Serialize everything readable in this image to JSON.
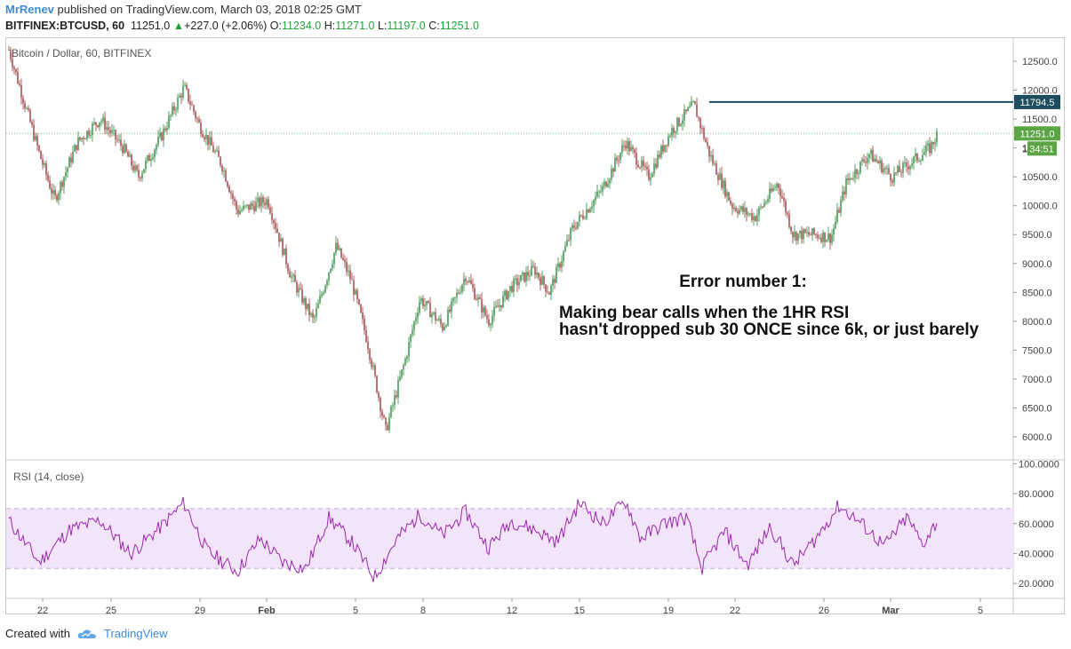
{
  "header": {
    "author": "MrRenev",
    "published_text": "published on TradingView.com, March 03, 2018 02:25 GMT",
    "symbol": "BITFINEX:BTCUSD, 60",
    "last": "11251.0",
    "change": "+227.0 (+2.06%)",
    "o_label": "O:",
    "o": "11234.0",
    "h_label": "H:",
    "h": "11271.0",
    "l_label": "L:",
    "l": "11197.0",
    "c_label": "C:",
    "c": "11251.0"
  },
  "footer": {
    "created_with": "Created with",
    "brand": "TradingView"
  },
  "chart_data": [
    {
      "type": "candlestick",
      "title": "Bitcoin / Dollar, 60, BITFINEX",
      "ylim": [
        5600,
        12900
      ],
      "yticks": [
        6000,
        6500,
        7000,
        7500,
        8000,
        8500,
        9000,
        9500,
        10000,
        10500,
        11000,
        11500,
        12000,
        12500
      ],
      "ytick_labels": [
        "6000.0",
        "6500.0",
        "7000.0",
        "7500.0",
        "8000.0",
        "8500.0",
        "9000.0",
        "9500.0",
        "10000.0",
        "10500.0",
        "11000.0",
        "11500.0",
        "12000.0",
        "12500.0"
      ],
      "x_tick_labels": [
        "22",
        "25",
        "29",
        "Feb",
        "5",
        "8",
        "12",
        "15",
        "19",
        "22",
        "26",
        "Mar",
        "5"
      ],
      "price_path": [
        {
          "x": 0,
          "y": 12700
        },
        {
          "x": 2,
          "y": 11800
        },
        {
          "x": 4,
          "y": 10900
        },
        {
          "x": 6,
          "y": 10100
        },
        {
          "x": 9,
          "y": 11100
        },
        {
          "x": 12,
          "y": 11500
        },
        {
          "x": 15,
          "y": 11000
        },
        {
          "x": 17,
          "y": 10500
        },
        {
          "x": 20,
          "y": 11200
        },
        {
          "x": 23,
          "y": 12050
        },
        {
          "x": 25,
          "y": 11400
        },
        {
          "x": 28,
          "y": 10700
        },
        {
          "x": 30,
          "y": 9900
        },
        {
          "x": 34,
          "y": 10100
        },
        {
          "x": 37,
          "y": 8800
        },
        {
          "x": 40,
          "y": 8000
        },
        {
          "x": 43,
          "y": 9300
        },
        {
          "x": 45,
          "y": 8700
        },
        {
          "x": 47,
          "y": 7700
        },
        {
          "x": 49.5,
          "y": 6100
        },
        {
          "x": 52,
          "y": 7300
        },
        {
          "x": 54,
          "y": 8400
        },
        {
          "x": 57,
          "y": 7900
        },
        {
          "x": 60,
          "y": 8800
        },
        {
          "x": 63,
          "y": 8000
        },
        {
          "x": 66,
          "y": 8600
        },
        {
          "x": 69,
          "y": 8900
        },
        {
          "x": 71,
          "y": 8500
        },
        {
          "x": 74,
          "y": 9600
        },
        {
          "x": 78,
          "y": 10300
        },
        {
          "x": 81,
          "y": 11100
        },
        {
          "x": 84,
          "y": 10500
        },
        {
          "x": 87,
          "y": 11300
        },
        {
          "x": 90,
          "y": 11750
        },
        {
          "x": 92,
          "y": 10900
        },
        {
          "x": 95,
          "y": 10000
        },
        {
          "x": 98,
          "y": 9800
        },
        {
          "x": 101,
          "y": 10400
        },
        {
          "x": 103,
          "y": 9500
        },
        {
          "x": 106,
          "y": 9500
        },
        {
          "x": 108,
          "y": 9450
        },
        {
          "x": 110,
          "y": 10400
        },
        {
          "x": 113,
          "y": 10900
        },
        {
          "x": 116,
          "y": 10500
        },
        {
          "x": 118,
          "y": 10700
        },
        {
          "x": 121,
          "y": 11000
        },
        {
          "x": 122,
          "y": 11250
        }
      ],
      "resistance_line": {
        "value": 11794.5,
        "label": "11794.5",
        "color": "#1e4d5e"
      },
      "last_price": {
        "value": 11251.0,
        "label": "11251.0",
        "countdown": "34:51",
        "countdown_prefix": "1",
        "color": "#5ba545"
      },
      "annotation": {
        "heading": "Error number 1:",
        "line1": "Making bear calls when the 1HR RSI",
        "line2": "hasn't dropped sub 30 ONCE since 6k, or just barely"
      },
      "colors": {
        "up": "#2e8b3d",
        "down": "#9b3a3a",
        "grid_dotted": "#7ab87a"
      }
    },
    {
      "type": "line",
      "title": "RSI (14, close)",
      "ylim": [
        10,
        102
      ],
      "yticks": [
        20,
        40,
        60,
        80,
        100
      ],
      "ytick_labels": [
        "20.0000",
        "40.0000",
        "60.0000",
        "80.0000",
        "100.0000"
      ],
      "band": [
        30,
        70
      ],
      "series": [
        {
          "values_path": [
            {
              "x": 0,
              "y": 62
            },
            {
              "x": 4,
              "y": 34
            },
            {
              "x": 8,
              "y": 56
            },
            {
              "x": 12,
              "y": 62
            },
            {
              "x": 16,
              "y": 40
            },
            {
              "x": 20,
              "y": 58
            },
            {
              "x": 23,
              "y": 74
            },
            {
              "x": 26,
              "y": 42
            },
            {
              "x": 30,
              "y": 28
            },
            {
              "x": 33,
              "y": 50
            },
            {
              "x": 36,
              "y": 34
            },
            {
              "x": 39,
              "y": 30
            },
            {
              "x": 42,
              "y": 64
            },
            {
              "x": 45,
              "y": 48
            },
            {
              "x": 48,
              "y": 24
            },
            {
              "x": 51,
              "y": 50
            },
            {
              "x": 54,
              "y": 66
            },
            {
              "x": 57,
              "y": 52
            },
            {
              "x": 60,
              "y": 68
            },
            {
              "x": 63,
              "y": 44
            },
            {
              "x": 66,
              "y": 62
            },
            {
              "x": 69,
              "y": 56
            },
            {
              "x": 72,
              "y": 48
            },
            {
              "x": 75,
              "y": 74
            },
            {
              "x": 78,
              "y": 60
            },
            {
              "x": 81,
              "y": 75
            },
            {
              "x": 83,
              "y": 50
            },
            {
              "x": 86,
              "y": 60
            },
            {
              "x": 89,
              "y": 64
            },
            {
              "x": 91,
              "y": 30
            },
            {
              "x": 94,
              "y": 55
            },
            {
              "x": 97,
              "y": 32
            },
            {
              "x": 100,
              "y": 58
            },
            {
              "x": 103,
              "y": 32
            },
            {
              "x": 106,
              "y": 50
            },
            {
              "x": 109,
              "y": 72
            },
            {
              "x": 112,
              "y": 60
            },
            {
              "x": 115,
              "y": 45
            },
            {
              "x": 118,
              "y": 64
            },
            {
              "x": 120,
              "y": 46
            },
            {
              "x": 122,
              "y": 62
            }
          ],
          "color": "#9c27b0"
        }
      ],
      "colors": {
        "band_fill": "#f3e5f9",
        "band_line": "#c9a2d8"
      }
    }
  ]
}
